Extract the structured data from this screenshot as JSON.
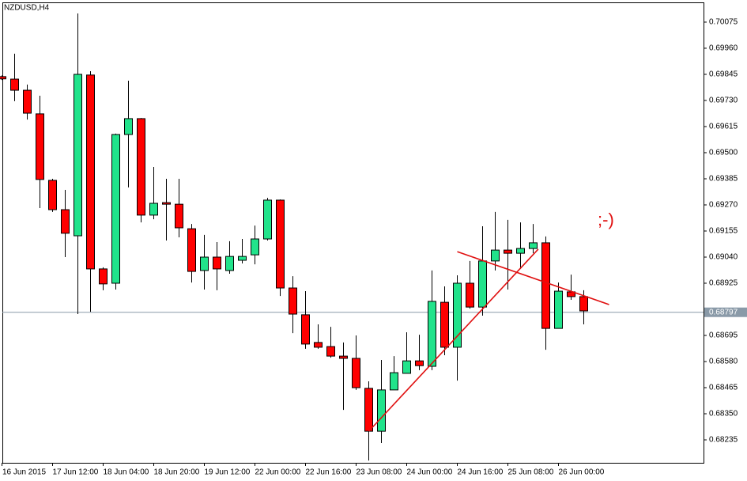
{
  "chart_data": {
    "type": "candlestick",
    "title": "NZDUSD,H4",
    "annotation": ";-)",
    "categories": [
      "16 Jun 2015",
      null,
      null,
      null,
      "17 Jun 12:00",
      null,
      null,
      null,
      "18 Jun 04:00",
      null,
      null,
      null,
      "18 Jun 20:00",
      null,
      null,
      null,
      "19 Jun 12:00",
      null,
      null,
      null,
      "22 Jun 00:00",
      null,
      null,
      null,
      "22 Jun 16:00",
      null,
      null,
      null,
      "23 Jun 08:00",
      null,
      null,
      null,
      "24 Jun 00:00",
      null,
      null,
      null,
      "24 Jun 16:00",
      null,
      null,
      null,
      "25 Jun 08:00",
      null,
      null,
      null,
      "26 Jun 00:00",
      null,
      null
    ],
    "open": [
      0.69835,
      0.69824,
      0.69775,
      0.69671,
      0.69378,
      0.69249,
      0.69134,
      0.69842,
      0.68988,
      0.68925,
      0.6958,
      0.6965,
      0.69225,
      0.6928,
      0.69273,
      0.69165,
      0.68981,
      0.6904,
      0.68981,
      0.69026,
      0.6905,
      0.6912,
      0.69291,
      0.68904,
      0.68786,
      0.68664,
      0.68646,
      0.68604,
      0.68594,
      0.68462,
      0.68273,
      0.68455,
      0.68528,
      0.68583,
      0.68559,
      0.68841,
      0.68643,
      0.68925,
      0.6882,
      0.69023,
      0.69071,
      0.69057,
      0.69078,
      0.69103,
      0.68726,
      0.68887,
      0.68866
    ],
    "high": [
      0.6984,
      0.69936,
      0.698,
      0.69751,
      0.69385,
      0.69336,
      0.70113,
      0.69859,
      0.68995,
      0.69584,
      0.69817,
      0.69653,
      0.69437,
      0.69385,
      0.69385,
      0.69186,
      0.69138,
      0.69106,
      0.6911,
      0.6912,
      0.69179,
      0.69301,
      0.69294,
      0.68956,
      0.6889,
      0.68744,
      0.68733,
      0.68664,
      0.68695,
      0.68493,
      0.68587,
      0.68604,
      0.68709,
      0.68698,
      0.68981,
      0.68911,
      0.6896,
      0.69023,
      0.69176,
      0.69239,
      0.69204,
      0.69193,
      0.69186,
      0.69131,
      0.68928,
      0.68963,
      0.68894
    ],
    "low": [
      0.6982,
      0.69727,
      0.69646,
      0.69256,
      0.69239,
      0.6904,
      0.68789,
      0.68799,
      0.68894,
      0.68897,
      0.69347,
      0.69193,
      0.69207,
      0.69113,
      0.69127,
      0.68928,
      0.68897,
      0.68894,
      0.68967,
      0.69012,
      0.69008,
      0.69113,
      0.68869,
      0.68705,
      0.68636,
      0.68636,
      0.68597,
      0.68367,
      0.68455,
      0.68144,
      0.68221,
      0.68455,
      0.68528,
      0.68542,
      0.68542,
      0.68608,
      0.68496,
      0.68813,
      0.68782,
      0.68981,
      0.68897,
      0.68988,
      0.69057,
      0.68632,
      0.68726,
      0.68852,
      0.68744
    ],
    "close": [
      0.69825,
      0.69775,
      0.69674,
      0.69382,
      0.69249,
      0.69145,
      0.69845,
      0.68988,
      0.68922,
      0.6958,
      0.6965,
      0.69225,
      0.69277,
      0.69273,
      0.69169,
      0.68977,
      0.6904,
      0.68988,
      0.69043,
      0.69043,
      0.6912,
      0.69291,
      0.68904,
      0.68789,
      0.68657,
      0.68643,
      0.68604,
      0.68594,
      0.68465,
      0.68273,
      0.68455,
      0.68531,
      0.68583,
      0.68562,
      0.68845,
      0.68643,
      0.68925,
      0.6882,
      0.69023,
      0.69071,
      0.69057,
      0.69078,
      0.69103,
      0.68726,
      0.6889,
      0.68866,
      0.68803
    ],
    "up_color": "#21e38b",
    "down_color": "#ff0000",
    "ylim": [
      0.68134,
      0.70162
    ],
    "yticks": [
      0.70075,
      {
        "value": 0.6996,
        "label": "0.69960"
      },
      0.69845,
      {
        "value": 0.6973,
        "label": "0.69730"
      },
      0.69615,
      {
        "value": 0.695,
        "label": "0.69500"
      },
      0.69385,
      {
        "value": 0.6927,
        "label": "0.69270"
      },
      0.69155,
      {
        "value": 0.6904,
        "label": "0.69040"
      },
      0.68925,
      0.68695,
      {
        "value": 0.6858,
        "label": "0.68580"
      },
      0.68465,
      {
        "value": 0.6835,
        "label": "0.68350"
      },
      0.68235
    ],
    "last_price": 0.68797,
    "trendlines": [
      {
        "color": "#e01010",
        "x": [
          29,
          42.4
        ],
        "y": [
          0.68273,
          0.69075
        ]
      },
      {
        "color": "#e01010",
        "x": [
          36,
          48
        ],
        "y": [
          0.69064,
          0.68831
        ]
      }
    ],
    "grid": false
  }
}
